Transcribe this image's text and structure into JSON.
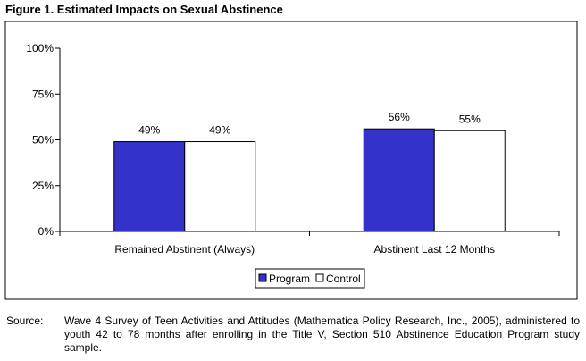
{
  "figure": {
    "title": "Figure 1.  Estimated Impacts on Sexual Abstinence"
  },
  "chart_data": {
    "type": "bar",
    "categories": [
      "Remained Abstinent (Always)",
      "Abstinent Last 12 Months"
    ],
    "series": [
      {
        "name": "Program",
        "values": [
          49,
          56
        ],
        "color": "#3333cc"
      },
      {
        "name": "Control",
        "values": [
          49,
          55
        ],
        "color": "#ffffff"
      }
    ],
    "data_labels": [
      [
        "49%",
        "56%"
      ],
      [
        "49%",
        "55%"
      ]
    ],
    "ylim": [
      0,
      100
    ],
    "yticks": [
      0,
      25,
      50,
      75,
      100
    ],
    "ytick_labels": [
      "0%",
      "25%",
      "50%",
      "75%",
      "100%"
    ],
    "xlabel": "",
    "ylabel": "",
    "grid": false,
    "legend_position": "bottom-center"
  },
  "source": {
    "label": "Source:",
    "text": "Wave 4 Survey of Teen Activities and Attitudes (Mathematica Policy Research, Inc., 2005), administered to youth 42 to 78 months after enrolling in the Title V, Section 510 Abstinence Education Program study sample."
  }
}
